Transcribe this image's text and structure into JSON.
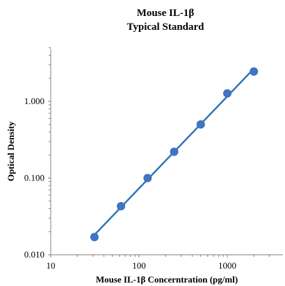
{
  "chart_data": {
    "type": "scatter",
    "title": "Mouse IL-1β",
    "subtitle": "Typical Standard",
    "xlabel": "Mouse IL-1β Concerntration (pg/ml)",
    "ylabel": "Optical Density",
    "x_scale": "log",
    "y_scale": "log",
    "xlim": [
      10,
      3000
    ],
    "ylim": [
      0.01,
      5
    ],
    "x_ticks": [
      10,
      100,
      1000
    ],
    "x_tick_labels": [
      "10",
      "100",
      "1000"
    ],
    "y_ticks": [
      0.01,
      0.1,
      1
    ],
    "y_tick_labels": [
      "0.010",
      "0.100",
      "1.000"
    ],
    "grid": false,
    "colors": {
      "series": "#2E75B6",
      "marker": "#4472C4",
      "axis": "#808080"
    },
    "series": [
      {
        "x": [
          31.25,
          62.5,
          125,
          250,
          500,
          1000,
          2000
        ],
        "y": [
          0.017,
          0.043,
          0.1,
          0.22,
          0.5,
          1.27,
          2.45
        ],
        "trendline": true
      }
    ]
  }
}
